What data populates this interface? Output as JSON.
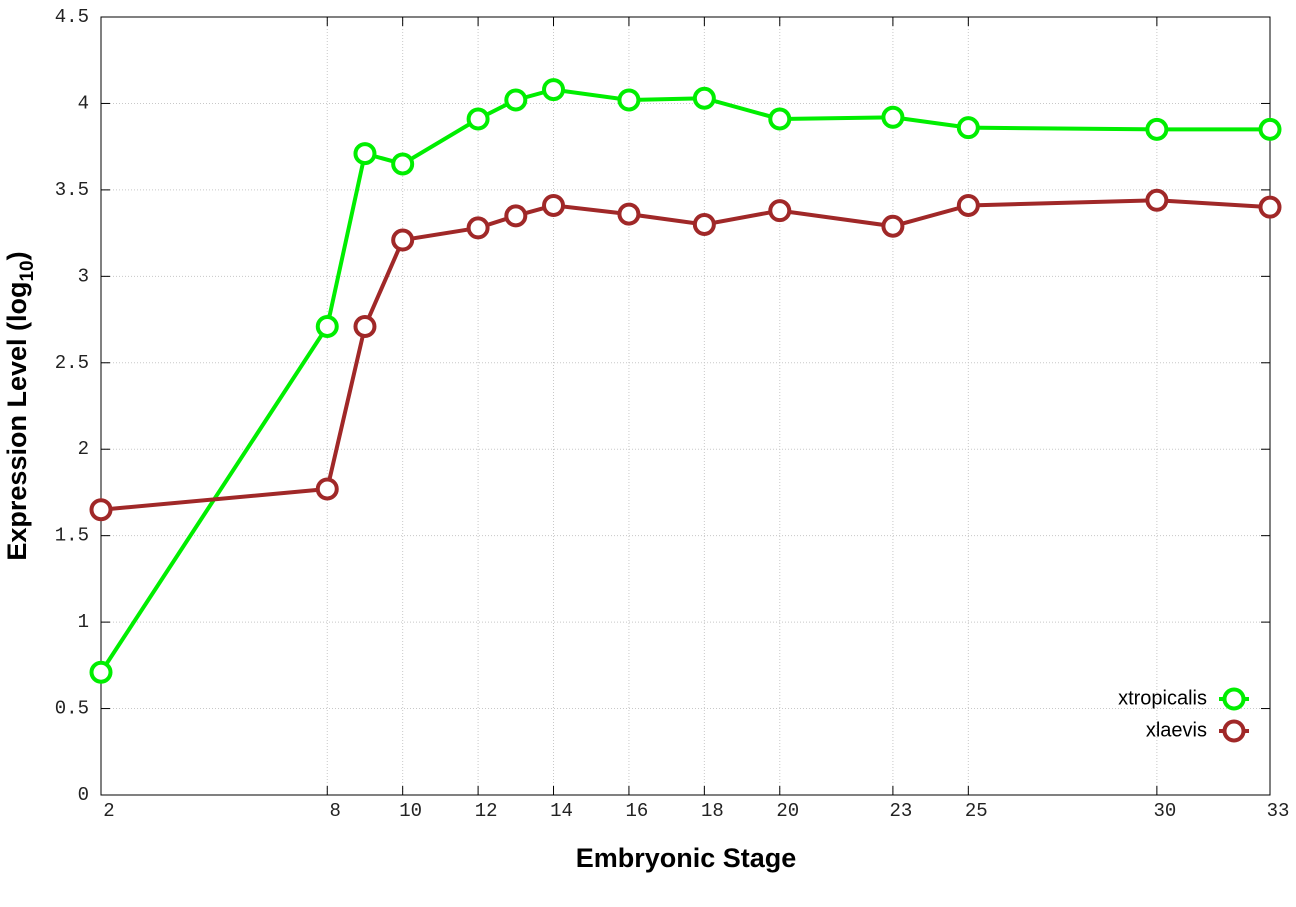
{
  "chart_data": {
    "type": "line",
    "x_label": "Embryonic Stage",
    "y_label": {
      "text": "Expression Level (log",
      "subscript": "10",
      "suffix": ")"
    },
    "x": [
      2,
      8,
      9,
      10,
      12,
      13,
      14,
      16,
      18,
      20,
      23,
      25,
      30,
      33
    ],
    "series": [
      {
        "name": "xtropicalis",
        "color": "#00ee00",
        "values": [
          0.71,
          2.71,
          3.71,
          3.65,
          3.91,
          4.02,
          4.08,
          4.02,
          4.03,
          3.91,
          3.92,
          3.86,
          3.85,
          3.85
        ]
      },
      {
        "name": "xlaevis",
        "color": "#a02828",
        "values": [
          1.65,
          1.77,
          2.71,
          3.21,
          3.28,
          3.35,
          3.41,
          3.36,
          3.3,
          3.38,
          3.29,
          3.41,
          3.44,
          3.4
        ]
      }
    ],
    "xlim": [
      2,
      33
    ],
    "xticks": [
      2,
      8,
      10,
      12,
      14,
      16,
      18,
      20,
      23,
      25,
      30,
      33
    ],
    "ylim": [
      0,
      4.5
    ],
    "yticks": [
      0,
      0.5,
      1,
      1.5,
      2,
      2.5,
      3,
      3.5,
      4,
      4.5
    ],
    "grid": true,
    "legend": "lower right"
  }
}
